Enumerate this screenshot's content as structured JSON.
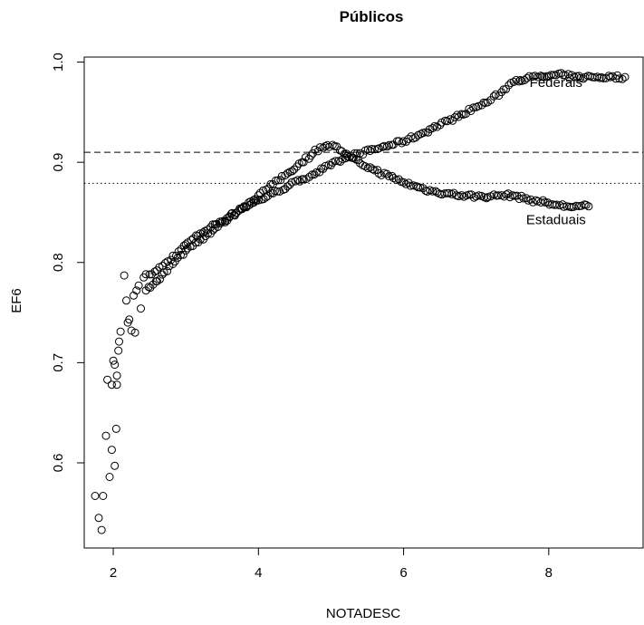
{
  "chart_data": {
    "type": "scatter",
    "title": "Públicos",
    "xlabel": "NOTADESC",
    "ylabel": "EF6",
    "xlim": [
      1.6,
      9.3
    ],
    "ylim": [
      0.515,
      1.005
    ],
    "x_ticks": [
      2,
      4,
      6,
      8
    ],
    "y_ticks": [
      0.6,
      0.7,
      0.8,
      0.9,
      1.0
    ],
    "y_tick_labels": [
      "0.6",
      "0.7",
      "0.8",
      "0.9",
      "1.0"
    ],
    "grid": false,
    "legend": "none",
    "marker": "open-circle",
    "reference_lines": [
      {
        "style": "dashed",
        "y": 0.91
      },
      {
        "style": "dotted",
        "y": 0.879
      }
    ],
    "annotations": [
      {
        "text": "Federais",
        "x": 8.1,
        "y": 0.975
      },
      {
        "text": "Estaduais",
        "x": 8.1,
        "y": 0.838
      }
    ],
    "series": [
      {
        "name": "Federais",
        "points": [
          [
            1.75,
            0.567
          ],
          [
            1.8,
            0.545
          ],
          [
            1.84,
            0.533
          ],
          [
            1.86,
            0.567
          ],
          [
            1.9,
            0.627
          ],
          [
            1.92,
            0.683
          ],
          [
            1.95,
            0.586
          ],
          [
            1.98,
            0.613
          ],
          [
            1.98,
            0.678
          ],
          [
            2.0,
            0.702
          ],
          [
            2.02,
            0.597
          ],
          [
            2.02,
            0.698
          ],
          [
            2.04,
            0.634
          ],
          [
            2.05,
            0.678
          ],
          [
            2.05,
            0.687
          ],
          [
            2.07,
            0.712
          ],
          [
            2.08,
            0.721
          ],
          [
            2.1,
            0.731
          ],
          [
            2.15,
            0.787
          ],
          [
            2.18,
            0.762
          ],
          [
            2.2,
            0.74
          ],
          [
            2.22,
            0.743
          ],
          [
            2.25,
            0.732
          ],
          [
            2.28,
            0.767
          ],
          [
            2.3,
            0.73
          ],
          [
            2.32,
            0.772
          ],
          [
            2.35,
            0.777
          ],
          [
            2.38,
            0.754
          ],
          [
            2.42,
            0.785
          ],
          [
            2.5,
            0.788
          ],
          [
            2.6,
            0.792
          ],
          [
            2.75,
            0.801
          ],
          [
            2.9,
            0.811
          ],
          [
            3.0,
            0.818
          ],
          [
            3.2,
            0.829
          ],
          [
            3.4,
            0.838
          ],
          [
            3.6,
            0.846
          ],
          [
            3.8,
            0.855
          ],
          [
            4.0,
            0.862
          ],
          [
            4.2,
            0.869
          ],
          [
            4.4,
            0.876
          ],
          [
            4.6,
            0.883
          ],
          [
            4.8,
            0.89
          ],
          [
            5.0,
            0.897
          ],
          [
            5.2,
            0.904
          ],
          [
            5.4,
            0.909
          ],
          [
            5.6,
            0.913
          ],
          [
            5.8,
            0.917
          ],
          [
            6.0,
            0.921
          ],
          [
            6.2,
            0.927
          ],
          [
            6.4,
            0.934
          ],
          [
            6.6,
            0.941
          ],
          [
            6.8,
            0.948
          ],
          [
            7.0,
            0.955
          ],
          [
            7.2,
            0.962
          ],
          [
            7.35,
            0.97
          ],
          [
            7.45,
            0.977
          ],
          [
            7.55,
            0.982
          ],
          [
            7.7,
            0.984
          ],
          [
            7.85,
            0.985
          ],
          [
            8.0,
            0.986
          ],
          [
            8.1,
            0.987
          ],
          [
            8.2,
            0.987
          ],
          [
            8.35,
            0.985
          ],
          [
            8.5,
            0.985
          ],
          [
            8.6,
            0.985
          ],
          [
            8.85,
            0.985
          ],
          [
            9.05,
            0.985
          ]
        ]
      },
      {
        "name": "Estaduais",
        "points": [
          [
            2.45,
            0.772
          ],
          [
            2.55,
            0.778
          ],
          [
            2.7,
            0.79
          ],
          [
            2.85,
            0.801
          ],
          [
            3.0,
            0.812
          ],
          [
            3.2,
            0.823
          ],
          [
            3.4,
            0.834
          ],
          [
            3.6,
            0.845
          ],
          [
            3.8,
            0.856
          ],
          [
            4.0,
            0.867
          ],
          [
            4.2,
            0.878
          ],
          [
            4.4,
            0.889
          ],
          [
            4.6,
            0.9
          ],
          [
            4.75,
            0.909
          ],
          [
            4.85,
            0.915
          ],
          [
            4.95,
            0.917
          ],
          [
            5.05,
            0.916
          ],
          [
            5.15,
            0.911
          ],
          [
            5.25,
            0.905
          ],
          [
            5.4,
            0.899
          ],
          [
            5.6,
            0.892
          ],
          [
            5.8,
            0.886
          ],
          [
            6.0,
            0.88
          ],
          [
            6.2,
            0.875
          ],
          [
            6.4,
            0.871
          ],
          [
            6.6,
            0.869
          ],
          [
            6.8,
            0.867
          ],
          [
            7.0,
            0.866
          ],
          [
            7.2,
            0.866
          ],
          [
            7.35,
            0.867
          ],
          [
            7.5,
            0.867
          ],
          [
            7.65,
            0.864
          ],
          [
            7.85,
            0.861
          ],
          [
            7.95,
            0.86
          ],
          [
            8.05,
            0.858
          ],
          [
            8.15,
            0.857
          ],
          [
            8.25,
            0.856
          ],
          [
            8.55,
            0.856
          ]
        ]
      }
    ]
  }
}
